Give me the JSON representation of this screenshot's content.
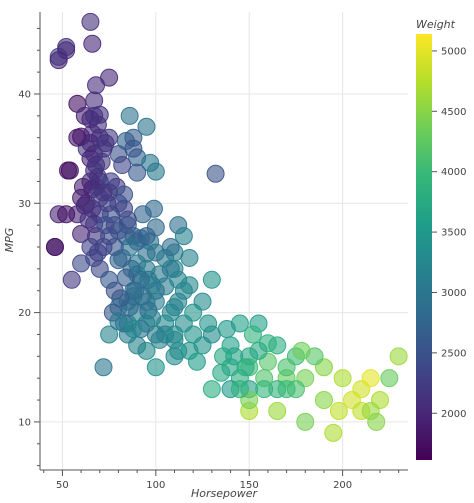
{
  "chart_data": {
    "type": "scatter",
    "title": "",
    "xlabel": "Horsepower",
    "ylabel": "MPG",
    "xlim": [
      38,
      235
    ],
    "ylim": [
      5.6,
      47.5
    ],
    "x_ticks": [
      50,
      100,
      150,
      200
    ],
    "y_ticks": [
      10,
      20,
      30,
      40
    ],
    "grid": true,
    "colorbar": {
      "title": "Weight",
      "palette": "viridis",
      "range": [
        1613,
        5140
      ],
      "ticks": [
        2000,
        2500,
        3000,
        3500,
        4000,
        4500,
        5000
      ],
      "stops": [
        "#440154",
        "#482878",
        "#3e4989",
        "#31688e",
        "#26828e",
        "#1f9e89",
        "#35b779",
        "#6ece58",
        "#b5de2b",
        "#fde725"
      ]
    },
    "points": [
      [
        65,
        46.6,
        2100
      ],
      [
        66,
        44.6,
        1980
      ],
      [
        52,
        44.3,
        2130
      ],
      [
        48,
        43.4,
        2335
      ],
      [
        48,
        43.1,
        1985
      ],
      [
        52,
        44.0,
        2040
      ],
      [
        75,
        41.5,
        2000
      ],
      [
        68,
        40.8,
        2070
      ],
      [
        58,
        39.1,
        1755
      ],
      [
        67,
        39.4,
        2070
      ],
      [
        70,
        38.1,
        2125
      ],
      [
        65,
        37.7,
        2050
      ],
      [
        62,
        38.0,
        1965
      ],
      [
        67,
        38.0,
        2120
      ],
      [
        69,
        37.2,
        2100
      ],
      [
        60,
        36.1,
        1800
      ],
      [
        63,
        35.0,
        2215
      ],
      [
        66,
        36.4,
        2050
      ],
      [
        70,
        36.0,
        2100
      ],
      [
        75,
        36.0,
        2200
      ],
      [
        58,
        36.0,
        1825
      ],
      [
        65,
        34.1,
        1975
      ],
      [
        67,
        34.5,
        2045
      ],
      [
        68,
        33.5,
        2000
      ],
      [
        53,
        33.0,
        1795
      ],
      [
        54,
        33.0,
        1755
      ],
      [
        69,
        32.4,
        2120
      ],
      [
        70,
        32.0,
        2155
      ],
      [
        75,
        31.0,
        2230
      ],
      [
        80,
        34.5,
        2500
      ],
      [
        84,
        35.7,
        2700
      ],
      [
        86,
        38.0,
        2930
      ],
      [
        88,
        36.0,
        2650
      ],
      [
        90,
        34.2,
        2720
      ],
      [
        95,
        37.0,
        2950
      ],
      [
        97,
        33.7,
        3000
      ],
      [
        90,
        32.8,
        2600
      ],
      [
        100,
        32.9,
        3050
      ],
      [
        65,
        32.0,
        1990
      ],
      [
        66,
        31.3,
        1950
      ],
      [
        72,
        31.0,
        2050
      ],
      [
        60,
        30.5,
        1850
      ],
      [
        62,
        29.8,
        1900
      ],
      [
        58,
        29.0,
        1980
      ],
      [
        48,
        29.0,
        1950
      ],
      [
        52,
        29.0,
        1800
      ],
      [
        60,
        27.2,
        1950
      ],
      [
        70,
        29.0,
        2300
      ],
      [
        78,
        28.0,
        2200
      ],
      [
        67,
        28.1,
        2175
      ],
      [
        68,
        27.0,
        2130
      ],
      [
        84,
        27.0,
        2560
      ],
      [
        88,
        27.0,
        2700
      ],
      [
        92,
        26.8,
        2750
      ],
      [
        95,
        25.4,
        2900
      ],
      [
        46,
        26.0,
        1835
      ],
      [
        46,
        26.0,
        1835
      ],
      [
        65,
        26.0,
        2300
      ],
      [
        67,
        25.0,
        2350
      ],
      [
        70,
        24.0,
        2400
      ],
      [
        55,
        23.0,
        2200
      ],
      [
        60,
        24.5,
        2400
      ],
      [
        80,
        27.5,
        2600
      ],
      [
        85,
        28.0,
        2600
      ],
      [
        90,
        26.5,
        2700
      ],
      [
        100,
        27.8,
        2800
      ],
      [
        110,
        25.5,
        3100
      ],
      [
        112,
        28.0,
        2900
      ],
      [
        115,
        27.0,
        3150
      ],
      [
        110,
        24.0,
        3200
      ],
      [
        105,
        22.4,
        3100
      ],
      [
        95,
        24.0,
        3050
      ],
      [
        88,
        22.0,
        2900
      ],
      [
        85,
        21.0,
        3000
      ],
      [
        75,
        23.0,
        2600
      ],
      [
        80,
        24.8,
        2700
      ],
      [
        90,
        23.5,
        3200
      ],
      [
        96,
        23.0,
        3000
      ],
      [
        100,
        22.0,
        2900
      ],
      [
        105,
        19.0,
        3300
      ],
      [
        110,
        20.5,
        3100
      ],
      [
        115,
        19.0,
        3300
      ],
      [
        120,
        18.0,
        3400
      ],
      [
        125,
        17.0,
        3400
      ],
      [
        130,
        18.0,
        3300
      ],
      [
        140,
        17.0,
        3600
      ],
      [
        150,
        16.0,
        3700
      ],
      [
        110,
        17.5,
        3200
      ],
      [
        100,
        18.0,
        3050
      ],
      [
        95,
        19.0,
        3100
      ],
      [
        90,
        20.0,
        3150
      ],
      [
        85,
        19.0,
        3200
      ],
      [
        80,
        20.5,
        3100
      ],
      [
        88,
        21.5,
        2950
      ],
      [
        95,
        21.0,
        3000
      ],
      [
        100,
        21.0,
        3100
      ],
      [
        115,
        22.0,
        3250
      ],
      [
        130,
        23.0,
        3400
      ],
      [
        145,
        19.0,
        3600
      ],
      [
        155,
        19.0,
        3600
      ],
      [
        165,
        17.0,
        3800
      ],
      [
        175,
        16.0,
        4000
      ],
      [
        140,
        15.0,
        3700
      ],
      [
        150,
        15.0,
        4000
      ],
      [
        160,
        15.5,
        4200
      ],
      [
        170,
        14.0,
        4300
      ],
      [
        180,
        14.0,
        4400
      ],
      [
        190,
        15.0,
        4500
      ],
      [
        200,
        14.0,
        4700
      ],
      [
        210,
        13.0,
        4900
      ],
      [
        215,
        14.0,
        5000
      ],
      [
        225,
        14.0,
        4300
      ],
      [
        230,
        16.0,
        4600
      ],
      [
        220,
        12.0,
        4700
      ],
      [
        205,
        12.0,
        4900
      ],
      [
        190,
        12.0,
        4500
      ],
      [
        175,
        13.0,
        4100
      ],
      [
        165,
        13.0,
        3900
      ],
      [
        150,
        13.0,
        3600
      ],
      [
        145,
        14.0,
        3800
      ],
      [
        140,
        13.0,
        3500
      ],
      [
        135,
        14.5,
        3700
      ],
      [
        150,
        11.0,
        4700
      ],
      [
        165,
        11.0,
        4600
      ],
      [
        180,
        10.0,
        4400
      ],
      [
        195,
        9.0,
        4700
      ],
      [
        210,
        11.0,
        4800
      ],
      [
        215,
        11.0,
        4600
      ],
      [
        218,
        10.0,
        4500
      ],
      [
        198,
        11.0,
        4800
      ],
      [
        150,
        12.0,
        4400
      ],
      [
        130,
        13.0,
        3800
      ],
      [
        72,
        15.0,
        3000
      ],
      [
        100,
        15.0,
        3400
      ],
      [
        110,
        16.0,
        3300
      ],
      [
        105,
        18.0,
        3100
      ],
      [
        95,
        16.5,
        3300
      ],
      [
        90,
        17.0,
        3200
      ],
      [
        85,
        18.0,
        3100
      ],
      [
        75,
        18.0,
        3200
      ],
      [
        110,
        18.0,
        3300
      ],
      [
        120,
        20.0,
        3450
      ],
      [
        125,
        21.0,
        3300
      ],
      [
        98,
        22.5,
        3100
      ],
      [
        90,
        24.5,
        3050
      ],
      [
        86,
        26.0,
        2950
      ],
      [
        97,
        26.5,
        2980
      ],
      [
        102,
        23.5,
        3050
      ],
      [
        108,
        24.0,
        3000
      ],
      [
        112,
        23.0,
        3200
      ],
      [
        132,
        32.7,
        2500
      ],
      [
        80,
        30.0,
        2400
      ],
      [
        76,
        29.0,
        2500
      ],
      [
        73,
        28.0,
        2450
      ],
      [
        83,
        29.5,
        2300
      ],
      [
        78,
        26.0,
        2550
      ],
      [
        82,
        25.0,
        2750
      ],
      [
        87,
        24.0,
        2800
      ],
      [
        92,
        23.0,
        2850
      ],
      [
        84,
        23.2,
        2650
      ],
      [
        89,
        22.0,
        2820
      ],
      [
        93,
        21.5,
        2900
      ],
      [
        96,
        20.2,
        2870
      ],
      [
        86,
        20.5,
        2780
      ],
      [
        81,
        21.3,
        2620
      ],
      [
        78,
        22.0,
        2500
      ],
      [
        77,
        20.0,
        2550
      ],
      [
        83,
        19.0,
        2850
      ],
      [
        92,
        18.5,
        2950
      ],
      [
        102,
        17.5,
        3200
      ],
      [
        112,
        16.5,
        3350
      ],
      [
        118,
        16.5,
        3450
      ],
      [
        122,
        15.5,
        3550
      ],
      [
        160,
        17.2,
        3850
      ],
      [
        158,
        14.0,
        4150
      ],
      [
        170,
        15.0,
        4100
      ],
      [
        185,
        16.0,
        4200
      ],
      [
        178,
        16.5,
        4350
      ],
      [
        170,
        13.0,
        4000
      ],
      [
        158,
        13.0,
        3950
      ],
      [
        145,
        13.0,
        3900
      ],
      [
        95,
        27.0,
        2700
      ],
      [
        65,
        35.5,
        1990
      ],
      [
        72,
        35.0,
        2180
      ],
      [
        63,
        30.0,
        2050
      ],
      [
        67,
        33.0,
        2120
      ],
      [
        61,
        31.5,
        1945
      ],
      [
        66,
        29.5,
        2100
      ],
      [
        79,
        31.5,
        2200
      ],
      [
        74,
        30.0,
        2250
      ],
      [
        68,
        31.5,
        2120
      ],
      [
        71,
        33.8,
        2200
      ],
      [
        73,
        35.5,
        2150
      ],
      [
        88,
        35.0,
        2550
      ],
      [
        82,
        33.5,
        2350
      ],
      [
        76,
        32.0,
        2280
      ],
      [
        70,
        30.5,
        2230
      ],
      [
        64,
        28.5,
        2120
      ],
      [
        75,
        27.0,
        2400
      ],
      [
        72,
        26.0,
        2350
      ],
      [
        69,
        25.5,
        2300
      ],
      [
        83,
        30.8,
        2480
      ],
      [
        93,
        29.0,
        2750
      ],
      [
        99,
        29.5,
        2800
      ],
      [
        118,
        25.0,
        3150
      ],
      [
        105,
        25.0,
        3050
      ],
      [
        100,
        25.5,
        2980
      ],
      [
        108,
        26.0,
        2900
      ],
      [
        85,
        28.5,
        2450
      ],
      [
        80,
        19.2,
        3050
      ],
      [
        88,
        18.5,
        3250
      ],
      [
        98,
        19.5,
        3150
      ],
      [
        108,
        20.0,
        3250
      ],
      [
        112,
        21.0,
        3200
      ],
      [
        118,
        22.5,
        3250
      ],
      [
        128,
        19.0,
        3400
      ],
      [
        138,
        18.5,
        3500
      ],
      [
        142,
        16.0,
        3650
      ],
      [
        148,
        15.0,
        3800
      ],
      [
        155,
        16.5,
        3750
      ],
      [
        152,
        18.0,
        3900
      ],
      [
        136,
        16.0,
        3700
      ]
    ]
  }
}
